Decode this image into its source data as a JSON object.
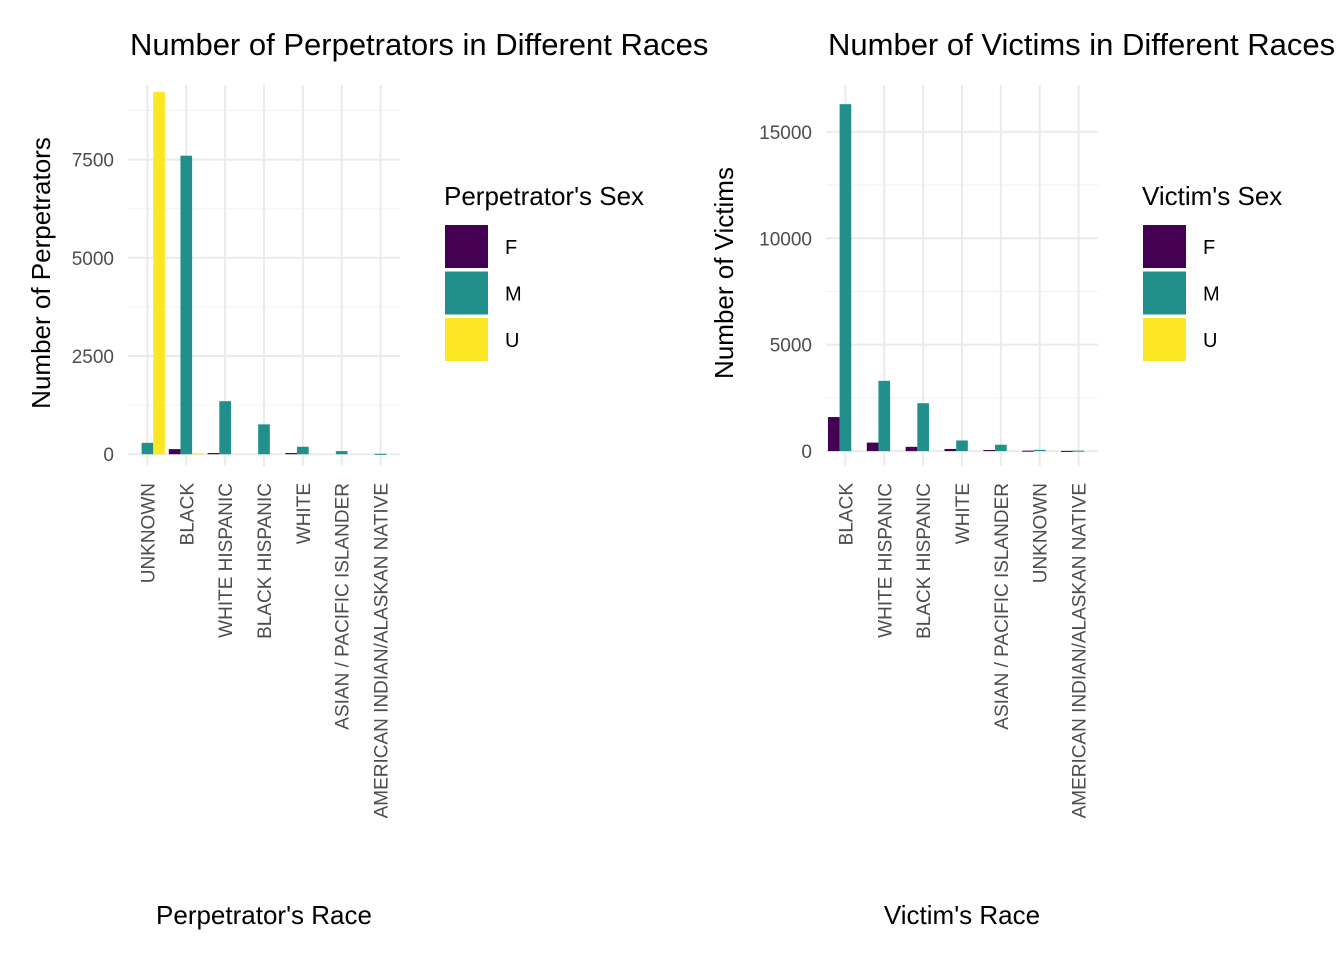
{
  "chart_data": [
    {
      "type": "bar",
      "title": "Number of Perpetrators in Different Races",
      "xlabel": "Perpetrator's Race",
      "ylabel": "Number of Perpetrators",
      "ylim": [
        -300,
        9400
      ],
      "yticks": [
        0,
        2500,
        5000,
        7500
      ],
      "grid": true,
      "legend_title": "Perpetrator's Sex",
      "legend_position": "right",
      "categories": [
        "UNKNOWN",
        "BLACK",
        "WHITE HISPANIC",
        "BLACK HISPANIC",
        "WHITE",
        "ASIAN / PACIFIC ISLANDER",
        "AMERICAN INDIAN/ALASKAN NATIVE"
      ],
      "series": [
        {
          "name": "F",
          "color": "#440154",
          "values": [
            null,
            130,
            30,
            null,
            30,
            null,
            null
          ]
        },
        {
          "name": "M",
          "color": "#21908C",
          "values": [
            290,
            7600,
            1350,
            760,
            190,
            80,
            10
          ]
        },
        {
          "name": "U",
          "color": "#FDE725",
          "values": [
            9220,
            20,
            null,
            null,
            null,
            null,
            null
          ]
        }
      ]
    },
    {
      "type": "bar",
      "title": "Number of Victims in Different Races",
      "xlabel": "Victim's Race",
      "ylabel": "Number of Victims",
      "ylim": [
        -700,
        17200
      ],
      "yticks": [
        0,
        5000,
        10000,
        15000
      ],
      "grid": true,
      "legend_title": "Victim's Sex",
      "legend_position": "right",
      "legend_entries": [
        "F",
        "M",
        "U"
      ],
      "categories": [
        "BLACK",
        "WHITE HISPANIC",
        "BLACK HISPANIC",
        "WHITE",
        "ASIAN / PACIFIC ISLANDER",
        "UNKNOWN",
        "AMERICAN INDIAN/ALASKAN NATIVE"
      ],
      "series": [
        {
          "name": "F",
          "color": "#440154",
          "values": [
            1600,
            400,
            200,
            100,
            50,
            20,
            10
          ]
        },
        {
          "name": "M",
          "color": "#21908C",
          "values": [
            16300,
            3300,
            2250,
            500,
            300,
            60,
            20
          ]
        },
        {
          "name": "U",
          "color": "#FDE725",
          "values": [
            null,
            null,
            null,
            null,
            null,
            null,
            null
          ]
        }
      ]
    }
  ]
}
